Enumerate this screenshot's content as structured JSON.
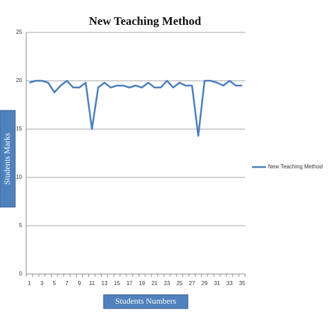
{
  "chart_data": {
    "type": "line",
    "title": "New Teaching Method",
    "x_label": "Students Numbers",
    "y_label": "Students Marks",
    "categories": [
      "1",
      null,
      "3",
      null,
      "5",
      null,
      "7",
      null,
      "9",
      null,
      "11",
      null,
      "13",
      null,
      "15",
      null,
      "17",
      null,
      "19",
      null,
      "21",
      null,
      "23",
      null,
      "25",
      null,
      "27",
      null,
      "29",
      null,
      "31",
      null,
      "33",
      null,
      "35"
    ],
    "series": [
      {
        "name": "New Teaching Method",
        "color": "#4a7ebb",
        "values": [
          19.8,
          20,
          20,
          19.8,
          18.8,
          19.5,
          20,
          19.3,
          19.3,
          19.8,
          15,
          19.3,
          19.8,
          19.3,
          19.5,
          19.5,
          19.3,
          19.5,
          19.3,
          19.8,
          19.3,
          19.3,
          20,
          19.3,
          19.8,
          19.5,
          19.5,
          14.3,
          20,
          20,
          19.8,
          19.5,
          20,
          19.5,
          19.5
        ]
      }
    ],
    "ylim": [
      0,
      25
    ],
    "yticks": [
      0,
      5,
      10,
      15,
      20,
      25
    ],
    "grid": true,
    "legend": "right"
  }
}
